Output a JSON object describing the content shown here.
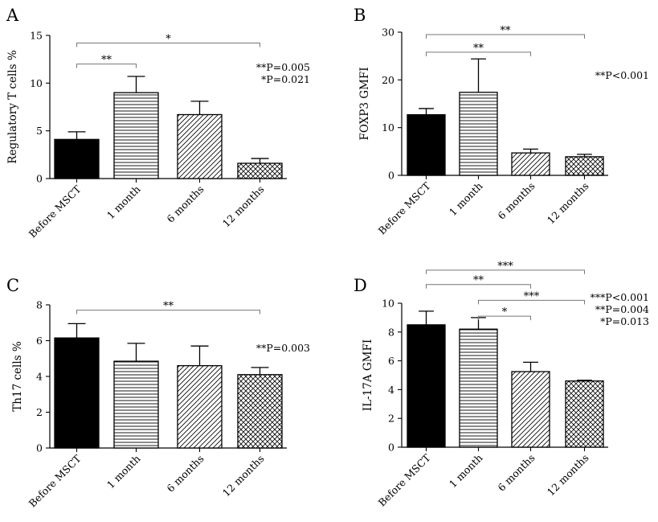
{
  "palette": {
    "ink": "#000000",
    "bracket": "#777777"
  },
  "chart_data": [
    {
      "panel": "A",
      "type": "bar",
      "ylabel": "Regulatory T cells %",
      "ylim": [
        0,
        15
      ],
      "yticks": [
        0,
        5,
        10,
        15
      ],
      "categories": [
        "Before MSCT",
        "1 month",
        "6 months",
        "12 months"
      ],
      "values": [
        4.1,
        9.0,
        6.7,
        1.6
      ],
      "errors": [
        0.8,
        1.7,
        1.4,
        0.5
      ],
      "patterns": [
        "solid",
        "horizontal",
        "diagonal",
        "crosshatch"
      ],
      "brackets": [
        {
          "from": 0,
          "to": 3,
          "y": 14.2,
          "label": "*"
        },
        {
          "from": 0,
          "to": 1,
          "y": 12.0,
          "label": "**"
        }
      ],
      "pvalues": [
        "**P=0.005",
        "*P=0.021"
      ]
    },
    {
      "panel": "B",
      "type": "bar",
      "ylabel": "FOXP3 GMFI",
      "ylim": [
        0,
        30
      ],
      "yticks": [
        0,
        10,
        20,
        30
      ],
      "categories": [
        "Before MSCT",
        "1 month",
        "6 months",
        "12 months"
      ],
      "values": [
        12.7,
        17.4,
        4.7,
        3.9
      ],
      "errors": [
        1.3,
        7.0,
        0.8,
        0.5
      ],
      "patterns": [
        "solid",
        "horizontal",
        "diagonal",
        "crosshatch"
      ],
      "brackets": [
        {
          "from": 0,
          "to": 3,
          "y": 29.5,
          "label": "**"
        },
        {
          "from": 0,
          "to": 2,
          "y": 25.8,
          "label": "**"
        }
      ],
      "pvalues": [
        "**P<0.001"
      ]
    },
    {
      "panel": "C",
      "type": "bar",
      "ylabel": "Th17 cells %",
      "ylim": [
        0,
        8
      ],
      "yticks": [
        0,
        2,
        4,
        6,
        8
      ],
      "categories": [
        "Before MSCT",
        "1 month",
        "6 months",
        "12 months"
      ],
      "values": [
        6.15,
        4.85,
        4.6,
        4.1
      ],
      "errors": [
        0.8,
        1.0,
        1.1,
        0.4
      ],
      "patterns": [
        "solid",
        "horizontal",
        "diagonal",
        "crosshatch"
      ],
      "brackets": [
        {
          "from": 0,
          "to": 3,
          "y": 7.7,
          "label": "**"
        }
      ],
      "pvalues": [
        "**P=0.003"
      ]
    },
    {
      "panel": "D",
      "type": "bar",
      "ylabel": "IL-17A GMFI",
      "ylim": [
        0,
        10
      ],
      "yticks": [
        0,
        2,
        4,
        6,
        8,
        10
      ],
      "categories": [
        "Before MSCT",
        "1 month",
        "6 months",
        "12 months"
      ],
      "values": [
        8.5,
        8.2,
        5.25,
        4.6
      ],
      "errors": [
        0.95,
        0.8,
        0.65,
        0.05
      ],
      "patterns": [
        "solid",
        "horizontal",
        "diagonal",
        "crosshatch"
      ],
      "brackets": [
        {
          "from": 0,
          "to": 3,
          "y": 12.3,
          "label": "***"
        },
        {
          "from": 0,
          "to": 2,
          "y": 11.3,
          "label": "**"
        },
        {
          "from": 1,
          "to": 3,
          "y": 10.2,
          "label": "***"
        },
        {
          "from": 1,
          "to": 2,
          "y": 9.1,
          "label": "*"
        }
      ],
      "pvalues": [
        "***P<0.001",
        "**P=0.004",
        "*P=0.013"
      ]
    }
  ]
}
